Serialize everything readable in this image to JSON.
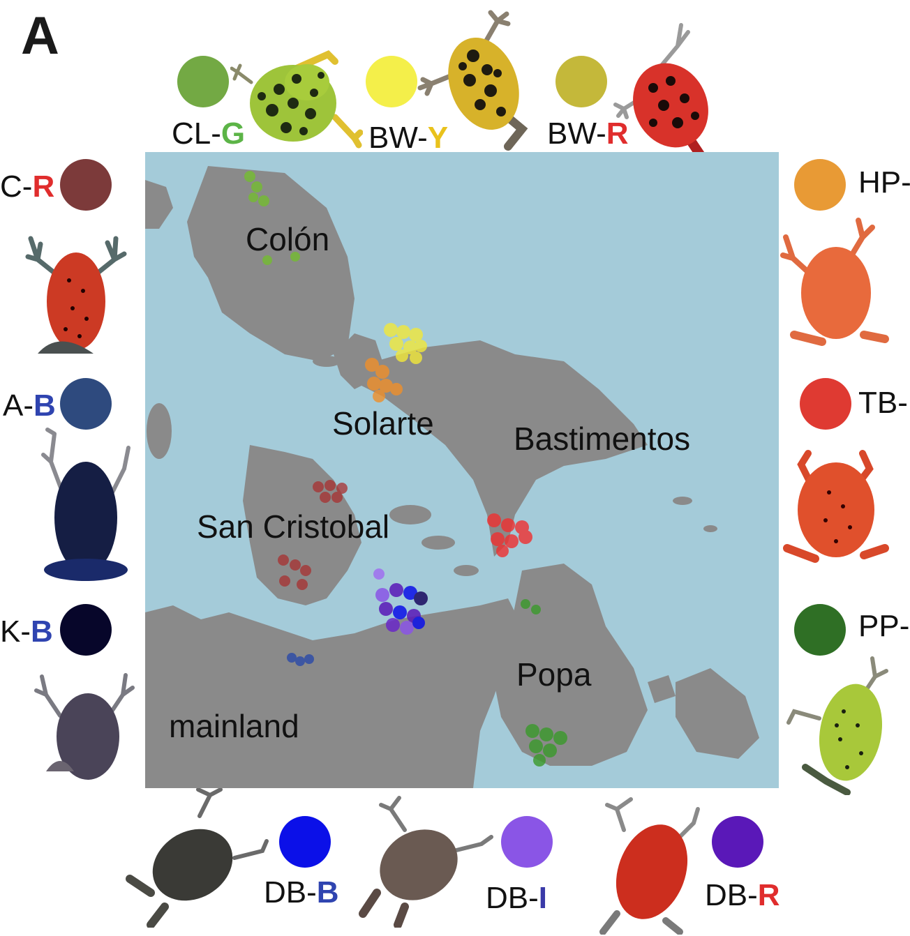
{
  "panel_label": "A",
  "colors": {
    "water": "#a4cbd9",
    "land": "#8a8a8a",
    "CL-G": "#73a944",
    "BW-Y": "#f4ef4a",
    "BW-R": "#c4b83a",
    "C-R": "#7c3a3a",
    "A-B": "#2e4a7e",
    "K-B": "#07062a",
    "HP-O": "#e89a35",
    "TB-R": "#df3a32",
    "PP-G": "#2f6f25",
    "DB-B": "#0b10e8",
    "DB-I": "#8a55e6",
    "DB-R": "#5a18b8",
    "accent_green": "#5cb447",
    "accent_yellow": "#e9c21c",
    "accent_red": "#e02d2d",
    "accent_blue": "#2f44b0",
    "accent_indigo": "#3a3aa8"
  },
  "populations": {
    "top": [
      {
        "code_prefix": "CL-",
        "code_suffix": "G",
        "suffix_color": "#5cb447",
        "swatch": "#73a944",
        "frog_icon": "green-spotted-frog-icon"
      },
      {
        "code_prefix": "BW-",
        "code_suffix": "Y",
        "suffix_color": "#e9c21c",
        "swatch": "#f4ef4a",
        "frog_icon": "yellow-spotted-frog-icon"
      },
      {
        "code_prefix": "BW-",
        "code_suffix": "R",
        "suffix_color": "#e02d2d",
        "swatch": "#c4b83a",
        "frog_icon": "red-spotted-frog-icon"
      }
    ],
    "left": [
      {
        "code_prefix": "C-",
        "code_suffix": "R",
        "suffix_color": "#e02d2d",
        "swatch": "#7c3a3a",
        "frog_icon": "red-frog-icon"
      },
      {
        "code_prefix": "A-",
        "code_suffix": "B",
        "suffix_color": "#2f44b0",
        "swatch": "#2e4a7e",
        "frog_icon": "blue-frog-icon"
      },
      {
        "code_prefix": "K-",
        "code_suffix": "B",
        "suffix_color": "#2f44b0",
        "swatch": "#07062a",
        "frog_icon": "dark-frog-icon"
      }
    ],
    "right": [
      {
        "code_prefix": "HP-",
        "code_suffix": "",
        "suffix_color": "#e89a35",
        "swatch": "#e89a35",
        "frog_icon": "orange-frog-icon"
      },
      {
        "code_prefix": "TB-",
        "code_suffix": "",
        "suffix_color": "#df3a32",
        "swatch": "#df3a32",
        "frog_icon": "red-frog-icon"
      },
      {
        "code_prefix": "PP-",
        "code_suffix": "",
        "suffix_color": "#2f6f25",
        "swatch": "#2f6f25",
        "frog_icon": "green-spotted-frog-icon"
      }
    ],
    "bottom": [
      {
        "code_prefix": "DB-",
        "code_suffix": "B",
        "suffix_color": "#2f44b0",
        "swatch": "#0b10e8",
        "frog_icon": "dark-frog-icon"
      },
      {
        "code_prefix": "DB-",
        "code_suffix": "I",
        "suffix_color": "#3a3aa8",
        "swatch": "#8a55e6",
        "frog_icon": "brown-frog-icon"
      },
      {
        "code_prefix": "DB-",
        "code_suffix": "R",
        "suffix_color": "#e02d2d",
        "swatch": "#5a18b8",
        "frog_icon": "red-frog-icon"
      }
    ]
  },
  "map": {
    "place_names": {
      "colon": "Colón",
      "solarte": "Solarte",
      "bastimentos": "Bastimentos",
      "san_cristobal": "San Cristobal",
      "popa": "Popa",
      "mainland": "mainland"
    }
  }
}
